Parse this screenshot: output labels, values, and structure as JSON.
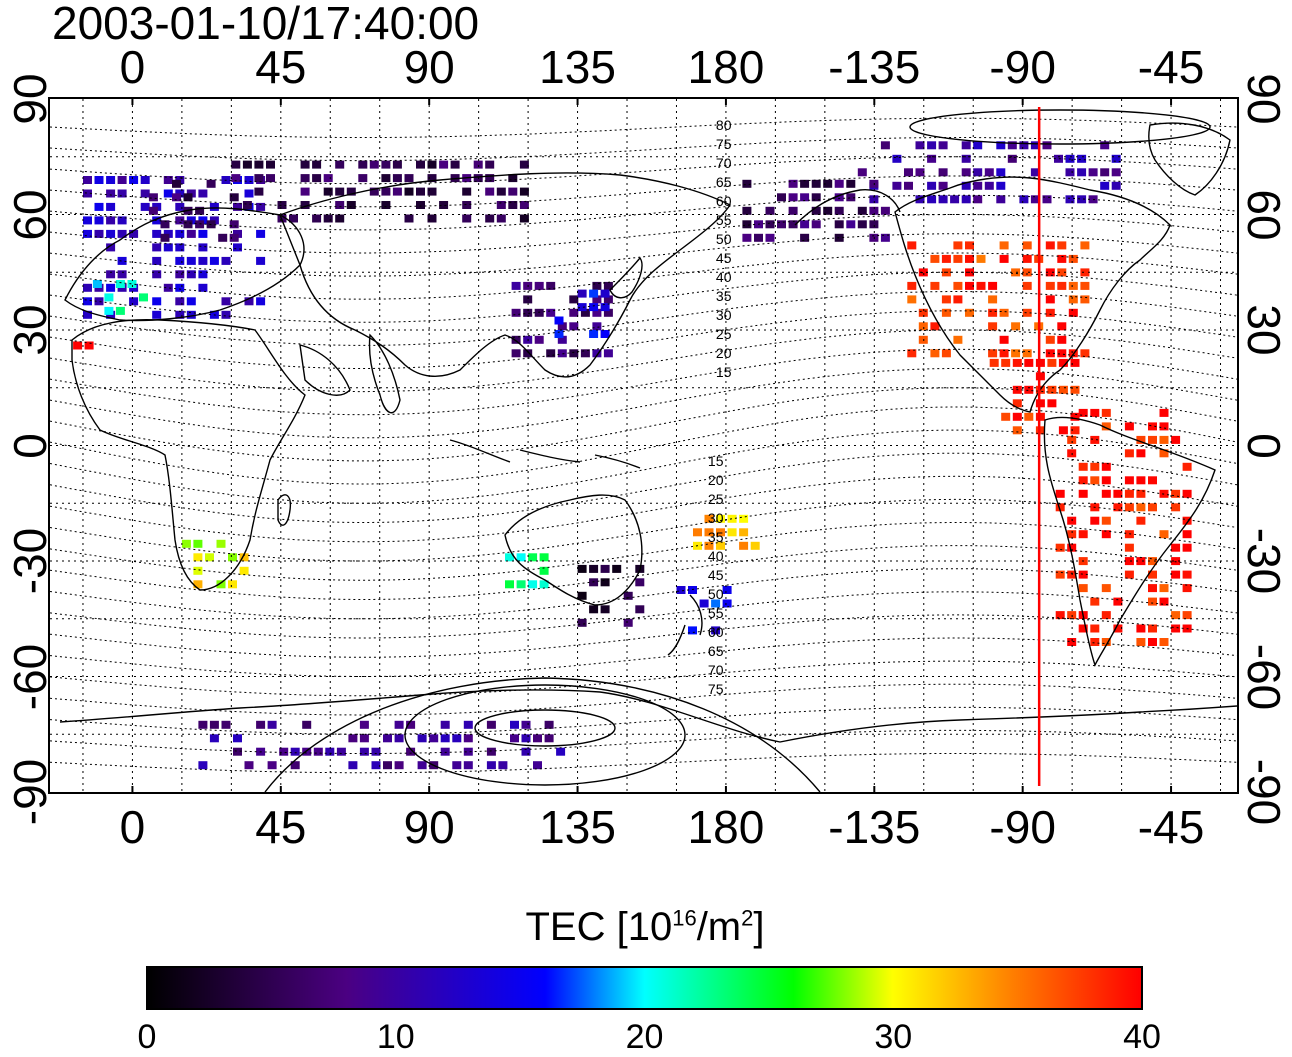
{
  "timestamp": "2003-01-10/17:40:00",
  "x_ticks": [
    "0",
    "45",
    "90",
    "135",
    "180",
    "-135",
    "-90",
    "-45"
  ],
  "y_ticks": [
    "90",
    "60",
    "30",
    "0",
    "-30",
    "-60",
    "-90"
  ],
  "contour_labels_north": [
    "80",
    "75",
    "70",
    "65",
    "60",
    "55",
    "50",
    "45",
    "40",
    "35",
    "30",
    "25",
    "20",
    "15"
  ],
  "contour_labels_south": [
    "15",
    "20",
    "25",
    "30",
    "35",
    "40",
    "45",
    "50",
    "55",
    "60",
    "65",
    "70",
    "75"
  ],
  "colorbar": {
    "title_main": "TEC  [10",
    "title_exp1": "16",
    "title_mid": "/m",
    "title_exp2": "2",
    "title_end": "]",
    "ticks": [
      "0",
      "10",
      "20",
      "30",
      "40"
    ],
    "range": [
      0,
      40
    ],
    "colors": [
      "#000000",
      "#4b0082",
      "#0000ff",
      "#00ffff",
      "#00ff00",
      "#ffff00",
      "#ff7f00",
      "#ff0000"
    ]
  },
  "meridian_marker": {
    "longitude": -85,
    "color": "#ff0000"
  },
  "map_data": {
    "projection": "equirectangular",
    "lon_range": [
      -25,
      335
    ],
    "lat_range": [
      -90,
      90
    ],
    "grid_step_deg": 15,
    "tec_regions": [
      {
        "name": "north-america",
        "lon": [
          -125,
          -70
        ],
        "lat": [
          25,
          55
        ],
        "tec": 38
      },
      {
        "name": "south-america",
        "lon": [
          -80,
          -40
        ],
        "lat": [
          -50,
          10
        ],
        "tec": 39
      },
      {
        "name": "central-america",
        "lon": [
          -100,
          -75
        ],
        "lat": [
          5,
          25
        ],
        "tec": 39
      },
      {
        "name": "canada-north",
        "lon": [
          -140,
          -60
        ],
        "lat": [
          65,
          82
        ],
        "tec": 10
      },
      {
        "name": "alaska",
        "lon": [
          -175,
          -130
        ],
        "lat": [
          55,
          70
        ],
        "tec": 6
      },
      {
        "name": "europe",
        "lon": [
          -15,
          40
        ],
        "lat": [
          35,
          70
        ],
        "tec": 12
      },
      {
        "name": "iberia",
        "lon": [
          -12,
          5
        ],
        "lat": [
          36,
          44
        ],
        "tec": 22
      },
      {
        "name": "scandinavia",
        "lon": [
          5,
          30
        ],
        "lat": [
          55,
          72
        ],
        "tec": 6
      },
      {
        "name": "russia-north",
        "lon": [
          30,
          120
        ],
        "lat": [
          60,
          75
        ],
        "tec": 5
      },
      {
        "name": "east-asia",
        "lon": [
          115,
          145
        ],
        "lat": [
          25,
          45
        ],
        "tec": 7
      },
      {
        "name": "japan",
        "lon": [
          128,
          145
        ],
        "lat": [
          30,
          42
        ],
        "tec": 14
      },
      {
        "name": "southern-africa",
        "lon": [
          15,
          35
        ],
        "lat": [
          -35,
          -22
        ],
        "tec": 30
      },
      {
        "name": "australia-west",
        "lon": [
          113,
          125
        ],
        "lat": [
          -35,
          -25
        ],
        "tec": 22
      },
      {
        "name": "australia-southeast",
        "lon": [
          135,
          155
        ],
        "lat": [
          -45,
          -30
        ],
        "tec": 4
      },
      {
        "name": "new-zealand",
        "lon": [
          165,
          180
        ],
        "lat": [
          -47,
          -35
        ],
        "tec": 15
      },
      {
        "name": "pacific-islands",
        "lon": [
          170,
          190
        ],
        "lat": [
          -25,
          -15
        ],
        "tec": 33
      },
      {
        "name": "antarctic-ring",
        "lon": [
          20,
          130
        ],
        "lat": [
          -82,
          -70
        ],
        "tec": 9
      },
      {
        "name": "canary",
        "lon": [
          -18,
          -12
        ],
        "lat": [
          27,
          31
        ],
        "tec": 39
      }
    ]
  }
}
